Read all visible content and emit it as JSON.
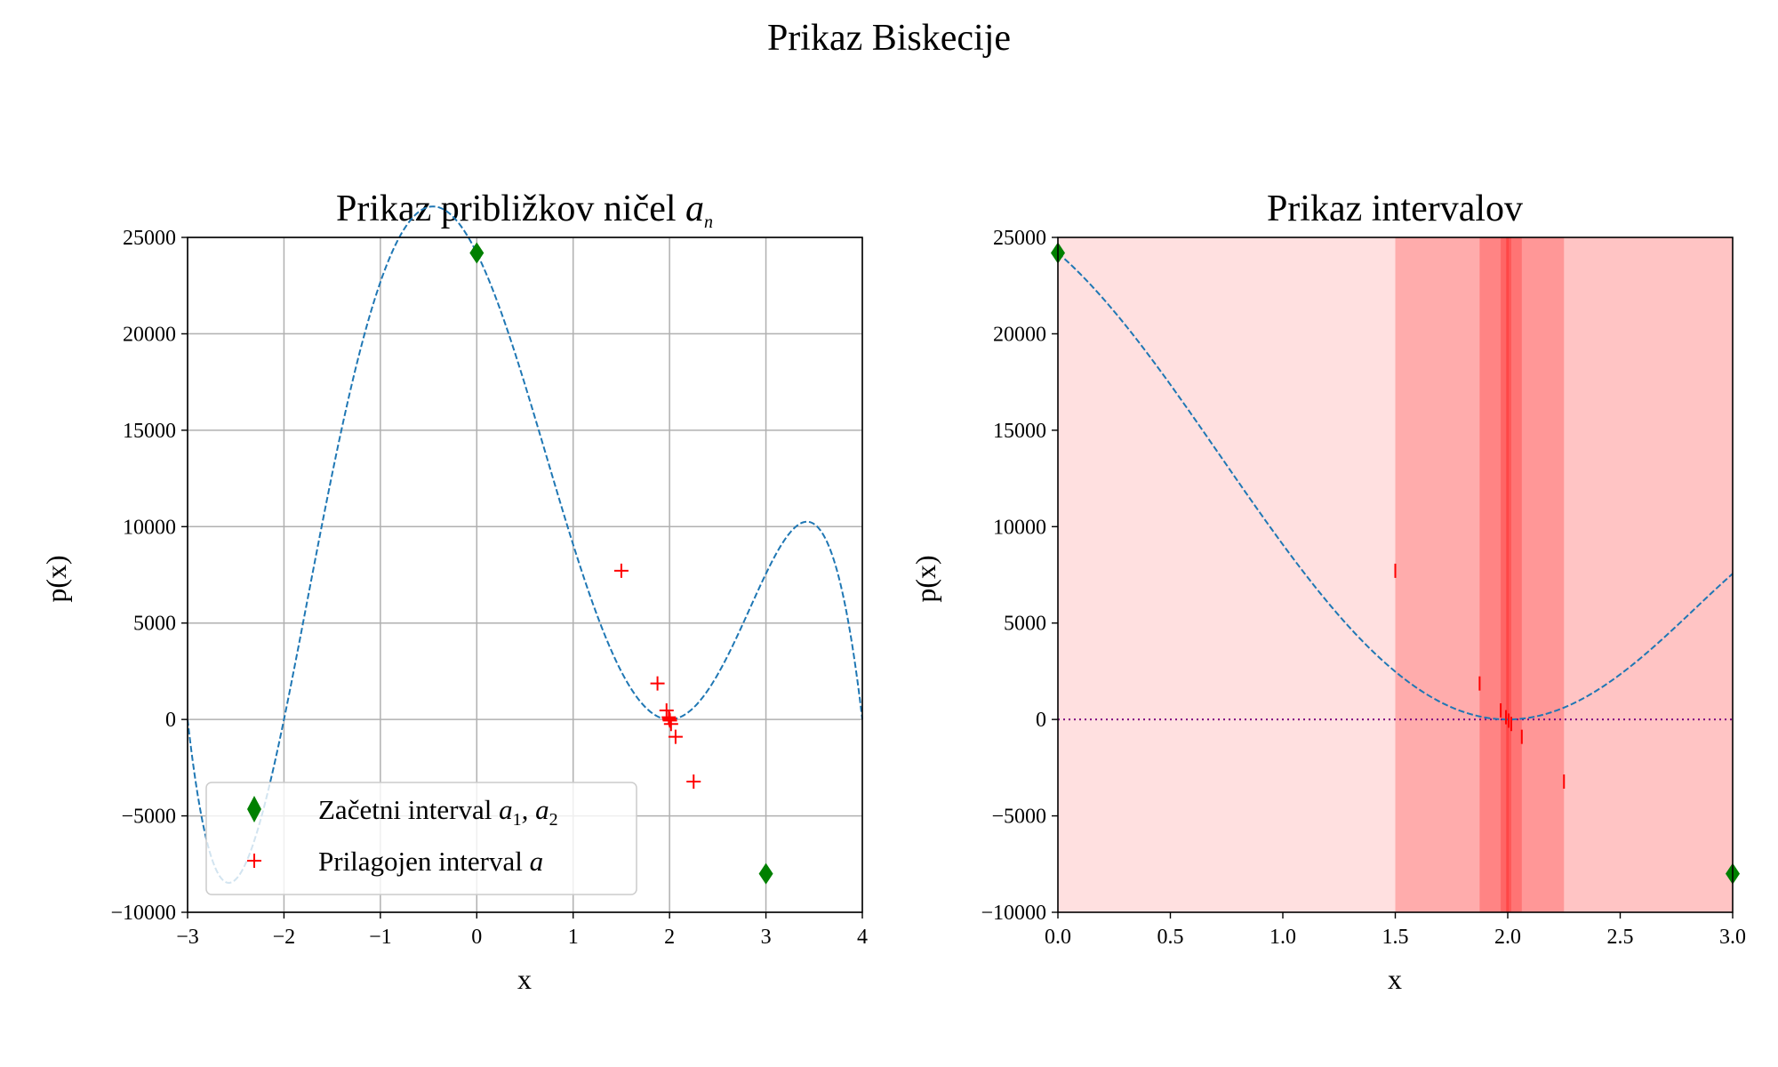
{
  "figure": {
    "title": "Prikaz Biskecije"
  },
  "chart_data": [
    {
      "type": "line",
      "title": "Prikaz približkov ničel",
      "title_math": "a",
      "title_math_sub": "n",
      "xlabel": "x",
      "ylabel": "p(x)",
      "xlim": [
        -3,
        4
      ],
      "ylim": [
        -10000,
        25000
      ],
      "x_ticks": [
        -3,
        -2,
        -1,
        0,
        1,
        2,
        3,
        4
      ],
      "x_tick_labels": [
        "−3",
        "−2",
        "−1",
        "0",
        "1",
        "2",
        "3",
        "4"
      ],
      "y_ticks": [
        -10000,
        -5000,
        0,
        5000,
        10000,
        15000,
        20000,
        25000
      ],
      "y_tick_labels": [
        "−10000",
        "−5000",
        "0",
        "5000",
        "10000",
        "15000",
        "20000",
        "25000"
      ],
      "grid": true,
      "curve": {
        "x_range": [
          -3,
          4
        ],
        "color": "#1f77b4",
        "style": "dashed"
      },
      "series": [
        {
          "name": "Začetni interval",
          "name_math": "a",
          "name_math_mid": ", a",
          "name_sub1": "1",
          "name_sub2": "2",
          "marker": "diamond",
          "color": "#008000",
          "x": [
            0,
            3
          ],
          "y": [
            24192,
            -8000
          ]
        },
        {
          "name": "Prilagojen interval",
          "name_math": "a",
          "marker": "plus",
          "color": "#ff0000",
          "x": [
            1.5,
            2.25,
            1.875,
            2.0625,
            1.96875,
            2.015625,
            1.9921875,
            2.00390625,
            1.998046875,
            2.0009765625
          ],
          "y": [
            7711,
            -3220,
            1867,
            -900,
            470,
            -233,
            117,
            -59,
            29,
            -15
          ]
        }
      ],
      "legend": {
        "position": "lower-left"
      }
    },
    {
      "type": "line",
      "title": "Prikaz intervalov",
      "xlabel": "x",
      "ylabel": "p(x)",
      "xlim": [
        0,
        3
      ],
      "ylim": [
        -10000,
        25000
      ],
      "x_ticks": [
        0,
        0.5,
        1,
        1.5,
        2,
        2.5,
        3
      ],
      "x_tick_labels": [
        "0.0",
        "0.5",
        "1.0",
        "1.5",
        "2.0",
        "2.5",
        "3.0"
      ],
      "y_ticks": [
        -10000,
        -5000,
        0,
        5000,
        10000,
        15000,
        20000,
        25000
      ],
      "y_tick_labels": [
        "−10000",
        "−5000",
        "0",
        "5000",
        "10000",
        "15000",
        "20000",
        "25000"
      ],
      "grid": false,
      "curve": {
        "x_range": [
          0,
          3
        ],
        "color": "#1f77b4",
        "style": "dashed"
      },
      "zero_line": {
        "y": 0,
        "color": "#800080",
        "style": "dotted"
      },
      "intervals": [
        [
          0,
          3
        ],
        [
          1.5,
          3
        ],
        [
          1.5,
          2.25
        ],
        [
          1.875,
          2.25
        ],
        [
          1.875,
          2.0625
        ],
        [
          1.96875,
          2.0625
        ],
        [
          1.96875,
          2.015625
        ],
        [
          1.9921875,
          2.015625
        ],
        [
          1.9921875,
          2.00390625
        ],
        [
          1.998046875,
          2.00390625
        ]
      ],
      "interval_color": "#ff0000",
      "endpoint_markers": {
        "x": [
          0,
          3
        ],
        "y": [
          24192,
          -8000
        ],
        "color": "#008000",
        "marker": "diamond"
      },
      "tick_markers": {
        "x": [
          1.5,
          2.25,
          1.875,
          2.0625,
          1.96875,
          2.015625,
          1.9921875,
          2.00390625
        ],
        "y": [
          7711,
          -3220,
          1867,
          -900,
          470,
          -233,
          117,
          -59
        ],
        "color": "#ff0000"
      }
    }
  ]
}
